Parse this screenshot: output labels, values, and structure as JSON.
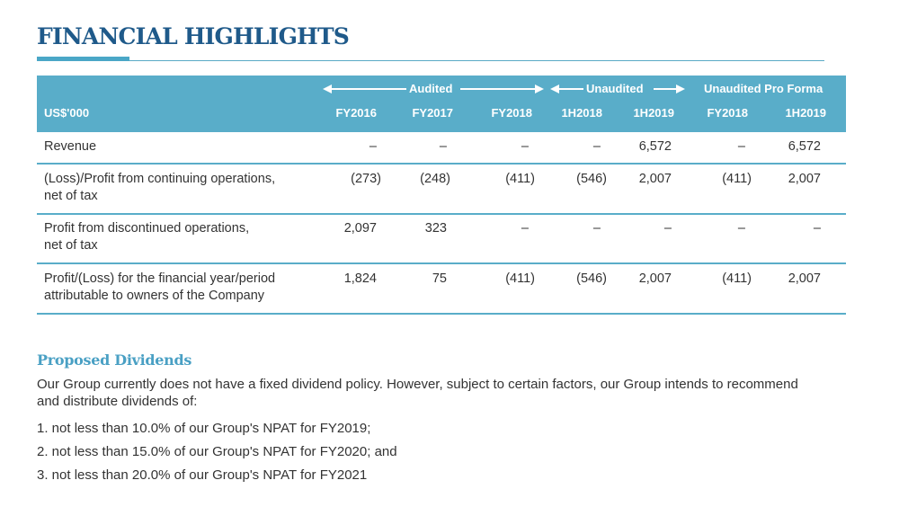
{
  "title": "FINANCIAL HIGHLIGHTS",
  "table": {
    "unit_label": "US$'000",
    "groups": {
      "audited": "Audited",
      "unaudited": "Unaudited",
      "pro_forma": "Unaudited Pro Forma"
    },
    "columns": [
      "FY2016",
      "FY2017",
      "FY2018",
      "1H2018",
      "1H2019",
      "FY2018",
      "1H2019"
    ],
    "rows": [
      {
        "label": "Revenue",
        "label2": "",
        "values": [
          "–",
          "–",
          "–",
          "–",
          "6,572",
          "–",
          "6,572"
        ]
      },
      {
        "label": "(Loss)/Profit from continuing operations,",
        "label2": "net of tax",
        "values": [
          "(273)",
          "(248)",
          "(411)",
          "(546)",
          "2,007",
          "(411)",
          "2,007"
        ]
      },
      {
        "label": "Profit from discontinued operations,",
        "label2": "net of tax",
        "values": [
          "2,097",
          "323",
          "–",
          "–",
          "–",
          "–",
          "–"
        ]
      },
      {
        "label": "Profit/(Loss) for the financial year/period",
        "label2": "attributable to owners of the Company",
        "values": [
          "1,824",
          "75",
          "(411)",
          "(546)",
          "2,007",
          "(411)",
          "2,007"
        ]
      }
    ]
  },
  "dividends": {
    "heading": "Proposed Dividends",
    "intro_line1": "Our Group currently does not have a fixed dividend policy. However, subject to certain factors, our Group intends to recommend",
    "intro_line2": "and distribute dividends of:",
    "items": [
      "1. not less than 10.0% of our Group's NPAT for FY2019;",
      "2. not less than 15.0% of our Group's NPAT for FY2020; and",
      "3. not less than 20.0% of our Group's NPAT for FY2021"
    ]
  },
  "colors": {
    "title": "#1f5a8a",
    "header_band": "#59adc9",
    "accent": "#4aa0c4"
  }
}
